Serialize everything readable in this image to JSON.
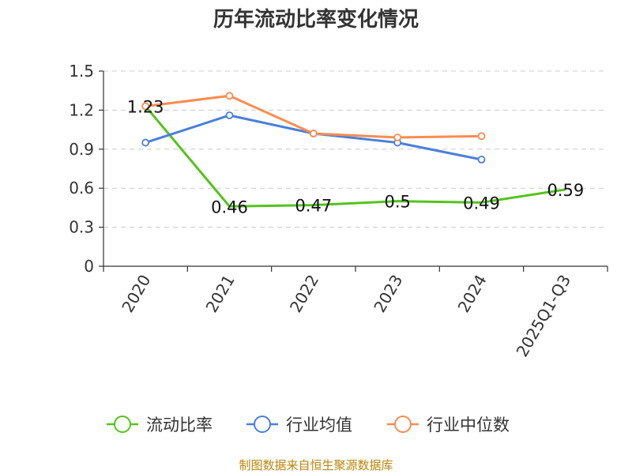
{
  "chart_data": {
    "type": "line",
    "title": "历年流动比率变化情况",
    "categories": [
      "2020",
      "2021",
      "2022",
      "2023",
      "2024",
      "2025Q1-Q3"
    ],
    "ylim": [
      0,
      1.5
    ],
    "yticks": [
      0,
      0.3,
      0.6,
      0.9,
      1.2,
      1.5
    ],
    "ytick_labels": [
      "0",
      "0.3",
      "0.6",
      "0.9",
      "1.2",
      "1.5"
    ],
    "xlabel": "",
    "ylabel": "",
    "grid": "horizontal dashed",
    "legend_position": "bottom",
    "series": [
      {
        "name": "流动比率",
        "color": "#52c41a",
        "values": [
          1.23,
          0.46,
          0.47,
          0.5,
          0.49,
          0.59
        ],
        "labels": [
          "1.23",
          "0.46",
          "0.47",
          "0.5",
          "0.49",
          "0.59"
        ]
      },
      {
        "name": "行业均值",
        "color": "#4a7fdb",
        "values": [
          0.95,
          1.16,
          1.02,
          0.95,
          0.82,
          null
        ]
      },
      {
        "name": "行业中位数",
        "color": "#fa8c50",
        "values": [
          1.23,
          1.31,
          1.02,
          0.99,
          1.0,
          null
        ]
      }
    ]
  },
  "source": "制图数据来自恒生聚源数据库"
}
